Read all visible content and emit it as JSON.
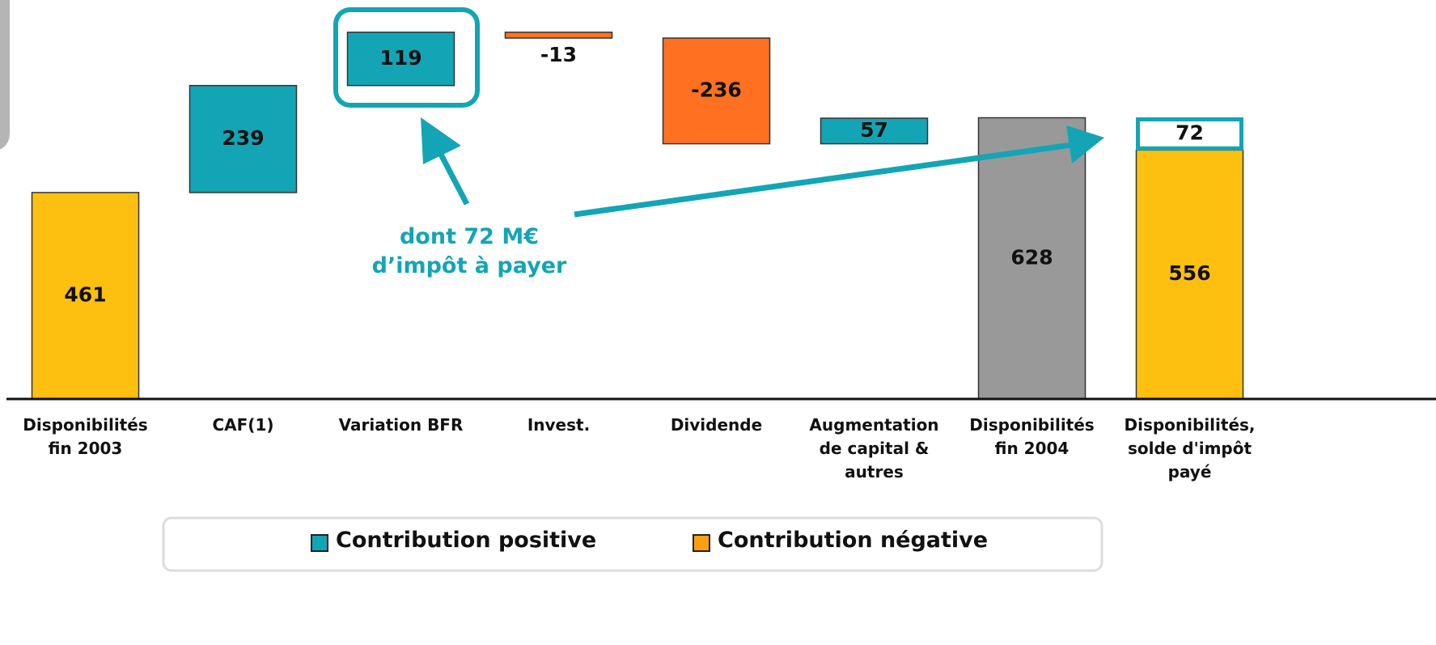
{
  "chart_data": {
    "type": "waterfall",
    "categories": [
      "Disponibilités\nfin 2003",
      "CAF(1)",
      "Variation BFR",
      "Invest.",
      "Dividende",
      "Augmentation\nde capital &\nautres",
      "Disponibilités\nfin 2004",
      "Disponibilités,\nsolde d'impôt\npayé"
    ],
    "values": [
      461,
      239,
      119,
      -13,
      -236,
      57,
      628,
      556
    ],
    "bar_kinds": [
      "total",
      "delta",
      "delta",
      "delta",
      "delta",
      "delta",
      "total",
      "total"
    ],
    "colors": [
      "#fdc010",
      "#13a5b5",
      "#13a5b5",
      "#ff7120",
      "#ff7120",
      "#13a5b5",
      "#999999",
      "#fdc010"
    ],
    "tax_box": {
      "value": 72,
      "color": "#13a5b5"
    },
    "annotation": "dont 72 M€\nd’impôt à payer",
    "ylim": [
      0,
      891
    ],
    "legend": [
      {
        "name": "Contribution positive",
        "color": "#13a5b5"
      },
      {
        "name": "Contribution négative",
        "color": "#ffa010"
      }
    ]
  }
}
